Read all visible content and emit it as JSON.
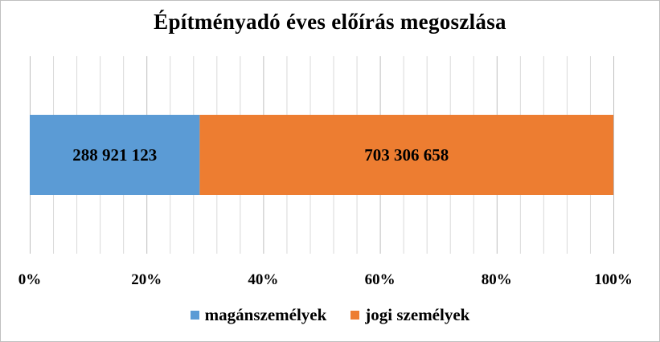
{
  "chart_data": {
    "type": "bar",
    "orientation": "horizontal",
    "stacking": "percent",
    "title": "Építményadó éves előírás megoszlása",
    "categories": [
      ""
    ],
    "series": [
      {
        "name": "magánszemélyek",
        "values": [
          288921123
        ],
        "label": "288 921 123",
        "color": "#5b9bd5"
      },
      {
        "name": "jogi személyek",
        "values": [
          703306658
        ],
        "label": "703 306 658",
        "color": "#ed7d31"
      }
    ],
    "xlim": [
      0,
      100
    ],
    "x_ticks": [
      0,
      20,
      40,
      60,
      80,
      100
    ],
    "x_tick_labels": [
      "0%",
      "20%",
      "40%",
      "60%",
      "80%",
      "100%"
    ],
    "minor_grid_step": 4,
    "grid": true,
    "legend": "bottom",
    "gridline_color": "#d9d9d9"
  }
}
